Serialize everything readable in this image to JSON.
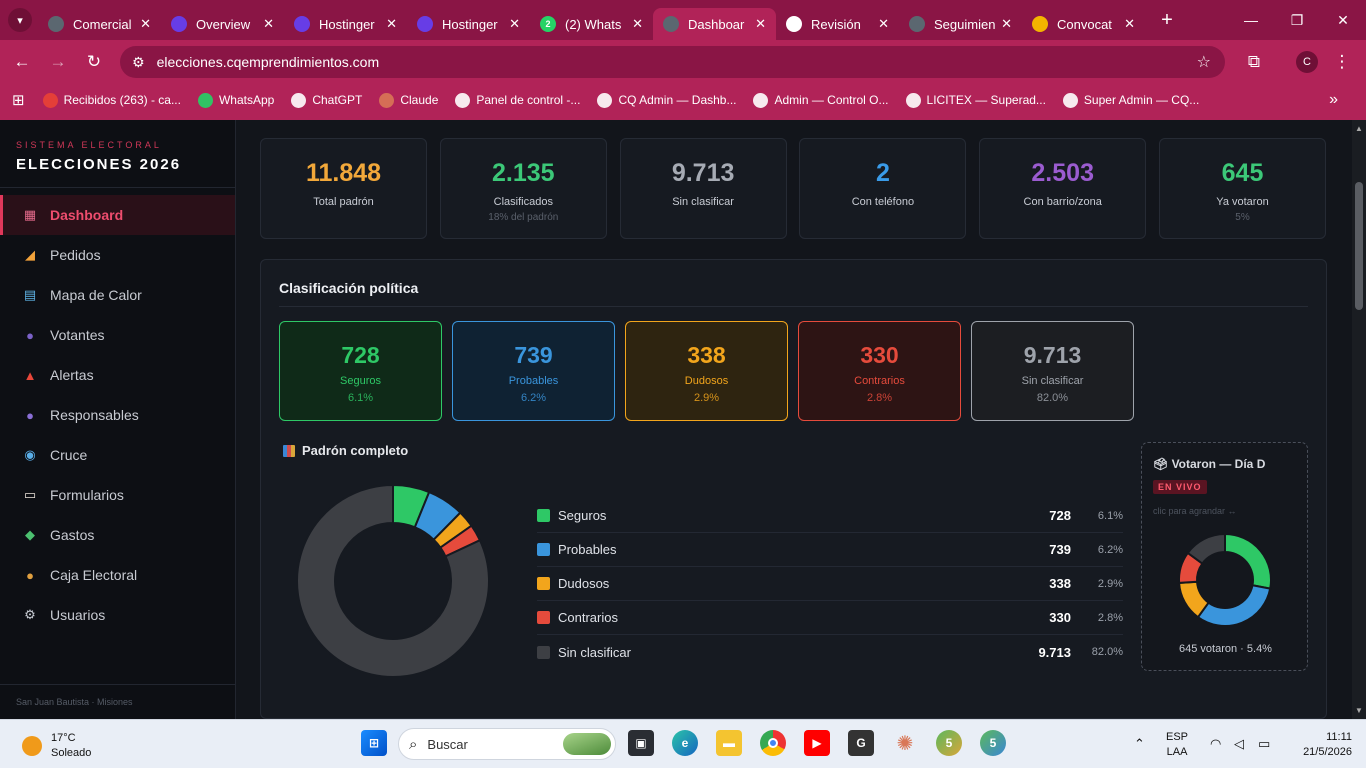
{
  "browser": {
    "tabs": [
      {
        "label": "Comercial",
        "icon": "globe-icon",
        "color": "#5b6770"
      },
      {
        "label": "Overview",
        "icon": "hostinger-icon",
        "color": "#673de6"
      },
      {
        "label": "Hostinger",
        "icon": "hostinger-icon",
        "color": "#673de6"
      },
      {
        "label": "Hostinger",
        "icon": "hostinger-icon",
        "color": "#673de6"
      },
      {
        "label": "(2) Whats",
        "icon": "whatsapp-icon",
        "color": "#25d366",
        "badge": "2"
      },
      {
        "label": "Dashboar",
        "icon": "globe-icon",
        "color": "#5b6770",
        "active": true
      },
      {
        "label": "Revisión",
        "icon": "openai-icon",
        "color": "#ffffff"
      },
      {
        "label": "Seguimien",
        "icon": "globe-icon",
        "color": "#5b6770"
      },
      {
        "label": "Convocat",
        "icon": "doc-icon",
        "color": "#f4b400"
      }
    ],
    "url": "elecciones.cqemprendimientos.com",
    "profile_initial": "C",
    "bookmarks": [
      {
        "label": "Recibidos (263) - ca...",
        "icon": "gmail-icon"
      },
      {
        "label": "WhatsApp",
        "icon": "whatsapp-icon"
      },
      {
        "label": "ChatGPT",
        "icon": "openai-icon"
      },
      {
        "label": "Claude",
        "icon": "claude-icon"
      },
      {
        "label": "Panel de control -...",
        "icon": "wix-icon"
      },
      {
        "label": "CQ Admin — Dashb...",
        "icon": "globe-icon"
      },
      {
        "label": "Admin — Control O...",
        "icon": "globe-icon"
      },
      {
        "label": "LICITEX — Superad...",
        "icon": "globe-icon"
      },
      {
        "label": "Super Admin — CQ...",
        "icon": "globe-icon"
      }
    ]
  },
  "sidebar": {
    "subtitle": "SISTEMA ELECTORAL",
    "brand": "ELECCIONES 2026",
    "items": [
      {
        "label": "Dashboard",
        "icon": "bar-chart-icon",
        "glyph": "▦",
        "color": "#e26a8a",
        "active": true
      },
      {
        "label": "Pedidos",
        "icon": "megaphone-icon",
        "glyph": "◢",
        "color": "#f2a23a"
      },
      {
        "label": "Mapa de Calor",
        "icon": "map-icon",
        "glyph": "▤",
        "color": "#5fb4e6"
      },
      {
        "label": "Votantes",
        "icon": "people-icon",
        "glyph": "●",
        "color": "#7b62c8"
      },
      {
        "label": "Alertas",
        "icon": "siren-icon",
        "glyph": "▲",
        "color": "#e8473a"
      },
      {
        "label": "Responsables",
        "icon": "person-icon",
        "glyph": "●",
        "color": "#8a6fd6"
      },
      {
        "label": "Cruce",
        "icon": "magnifier-icon",
        "glyph": "◉",
        "color": "#5aaee8"
      },
      {
        "label": "Formularios",
        "icon": "form-icon",
        "glyph": "▭",
        "color": "#e8e0d8"
      },
      {
        "label": "Gastos",
        "icon": "money-icon",
        "glyph": "◆",
        "color": "#4cc070"
      },
      {
        "label": "Caja Electoral",
        "icon": "money-bag-icon",
        "glyph": "●",
        "color": "#e0a040"
      },
      {
        "label": "Usuarios",
        "icon": "gear-icon",
        "glyph": "⚙",
        "color": "#c8ccd4"
      }
    ],
    "footer": "San Juan Bautista · Misiones"
  },
  "stats": [
    {
      "value": "11.848",
      "label": "Total padrón",
      "color": "#f2a83a"
    },
    {
      "value": "2.135",
      "label": "Clasificados",
      "sub": "18% del padrón",
      "color": "#3cc878"
    },
    {
      "value": "9.713",
      "label": "Sin clasificar",
      "color": "#a6abb4"
    },
    {
      "value": "2",
      "label": "Con teléfono",
      "color": "#3a9be8"
    },
    {
      "value": "2.503",
      "label": "Con barrio/zona",
      "color": "#9b5cd0"
    },
    {
      "value": "645",
      "label": "Ya votaron",
      "sub": "5%",
      "color": "#3cc878"
    }
  ],
  "classification": {
    "title": "Clasificación política",
    "cards": [
      {
        "value": "728",
        "label": "Seguros",
        "pct": "6.1%",
        "color": "#2ec866",
        "bg": "#0f2a18"
      },
      {
        "value": "739",
        "label": "Probables",
        "pct": "6.2%",
        "color": "#3a95dc",
        "bg": "#0f2233"
      },
      {
        "value": "338",
        "label": "Dudosos",
        "pct": "2.9%",
        "color": "#f2a51c",
        "bg": "#2e2410"
      },
      {
        "value": "330",
        "label": "Contrarios",
        "pct": "2.8%",
        "color": "#e54b3c",
        "bg": "#2d1414"
      },
      {
        "value": "9.713",
        "label": "Sin clasificar",
        "pct": "82.0%",
        "color": "#9ea3ab",
        "bg": "#1c1e22"
      }
    ]
  },
  "padron": {
    "title": "Padrón completo"
  },
  "chart_data": [
    {
      "type": "pie",
      "title": "Padrón completo",
      "categories": [
        "Seguros",
        "Probables",
        "Dudosos",
        "Contrarios",
        "Sin clasificar"
      ],
      "values": [
        728,
        739,
        338,
        330,
        9713
      ],
      "display_values": [
        "728",
        "739",
        "338",
        "330",
        "9.713"
      ],
      "percents": [
        "6.1%",
        "6.2%",
        "2.9%",
        "2.8%",
        "82.0%"
      ],
      "colors": [
        "#2ec866",
        "#3a95dc",
        "#f2a51c",
        "#e54b3c",
        "#3d3f44"
      ],
      "donut": true
    },
    {
      "type": "pie",
      "title": "Votaron — Día D",
      "categories": [
        "Seguros",
        "Probables",
        "Dudosos",
        "Contrarios",
        "Sin clasificar"
      ],
      "values": [
        28,
        32,
        14,
        11,
        15
      ],
      "colors": [
        "#2ec866",
        "#3a95dc",
        "#f2a51c",
        "#e54b3c",
        "#3d3f44"
      ],
      "donut": true
    }
  ],
  "live": {
    "title": "🗳 Votaron — Día D",
    "badge": "EN VIVO",
    "hint": "clic para agrandar ↔",
    "footer": "645 votaron · 5.4%"
  },
  "taskbar": {
    "temp": "17°C",
    "condition": "Soleado",
    "search_placeholder": "Buscar",
    "lang": "ESP",
    "lang2": "LAA",
    "time": "11:11",
    "date": "21/5/2026"
  }
}
